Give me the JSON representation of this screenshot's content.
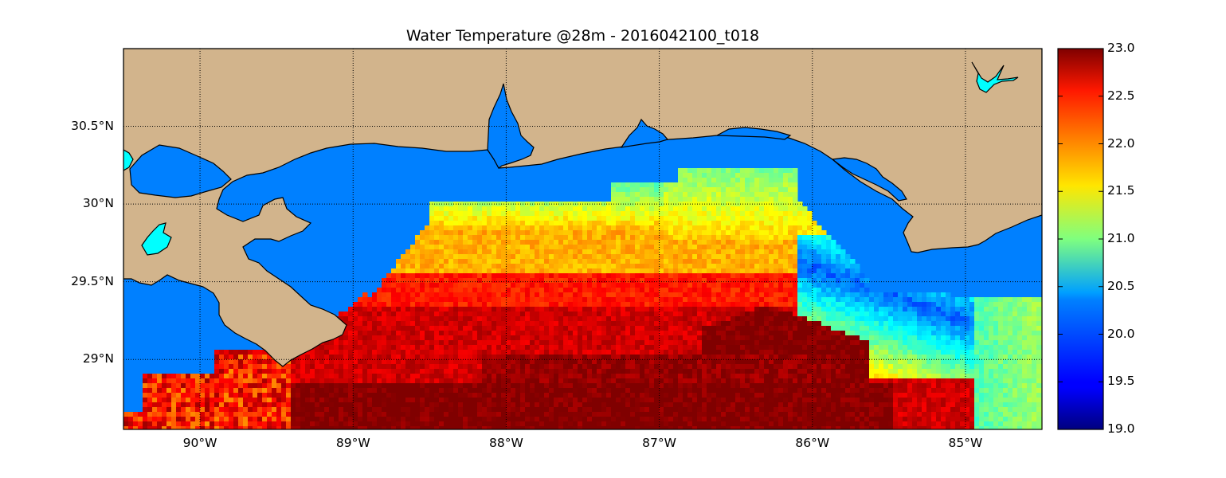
{
  "title": "Water Temperature @28m - 2016042100_t018",
  "colors": {
    "land": "#d2b48c",
    "water_nodata": "#0080ff",
    "lake": "#00ffff",
    "hot": "#800000",
    "grid": "#000000"
  },
  "map": {
    "lon_range": [
      -90.5,
      -84.5
    ],
    "lat_range": [
      28.55,
      31.0
    ],
    "grid": true,
    "x_ticks": [
      {
        "lon": -90,
        "label": "90°W"
      },
      {
        "lon": -89,
        "label": "89°W"
      },
      {
        "lon": -88,
        "label": "88°W"
      },
      {
        "lon": -87,
        "label": "87°W"
      },
      {
        "lon": -86,
        "label": "86°W"
      },
      {
        "lon": -85,
        "label": "85°W"
      }
    ],
    "y_ticks": [
      {
        "lat": 30.5,
        "label": "30.5°N"
      },
      {
        "lat": 30.0,
        "label": "30°N"
      },
      {
        "lat": 29.5,
        "label": "29.5°N"
      },
      {
        "lat": 29.0,
        "label": "29°N"
      }
    ]
  },
  "colorbar": {
    "colormap": "jet",
    "range": [
      19.0,
      23.0
    ],
    "ticks": [
      "19.0",
      "19.5",
      "20.0",
      "20.5",
      "21.0",
      "21.5",
      "22.0",
      "22.5",
      "23.0"
    ]
  }
}
